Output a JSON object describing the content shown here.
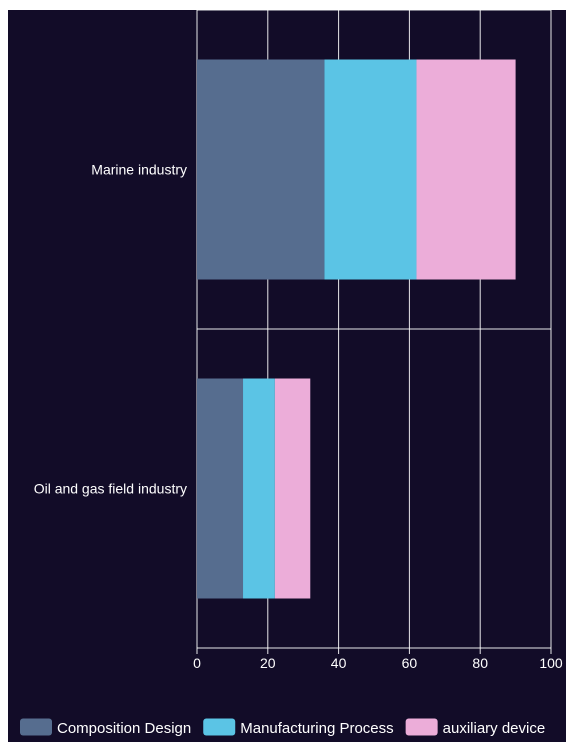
{
  "chart_data": {
    "type": "bar",
    "orientation": "horizontal",
    "stacked": true,
    "categories": [
      "Marine industry",
      "Oil and gas field industry"
    ],
    "series": [
      {
        "name": "Composition Design",
        "values": [
          36,
          13
        ],
        "color": "#566d8f"
      },
      {
        "name": "Manufacturing Process",
        "values": [
          26,
          9
        ],
        "color": "#5bc4e5"
      },
      {
        "name": "auxiliary device",
        "values": [
          28,
          10
        ],
        "color": "#ecadd9"
      }
    ],
    "x_ticks": [
      "0",
      "20",
      "40",
      "60",
      "80",
      "100"
    ],
    "xlim": [
      0,
      100
    ],
    "grid": true,
    "legend_position": "bottom"
  },
  "colors": {
    "background": "#120c28",
    "grid": "#ffffff",
    "text": "#ffffff"
  }
}
